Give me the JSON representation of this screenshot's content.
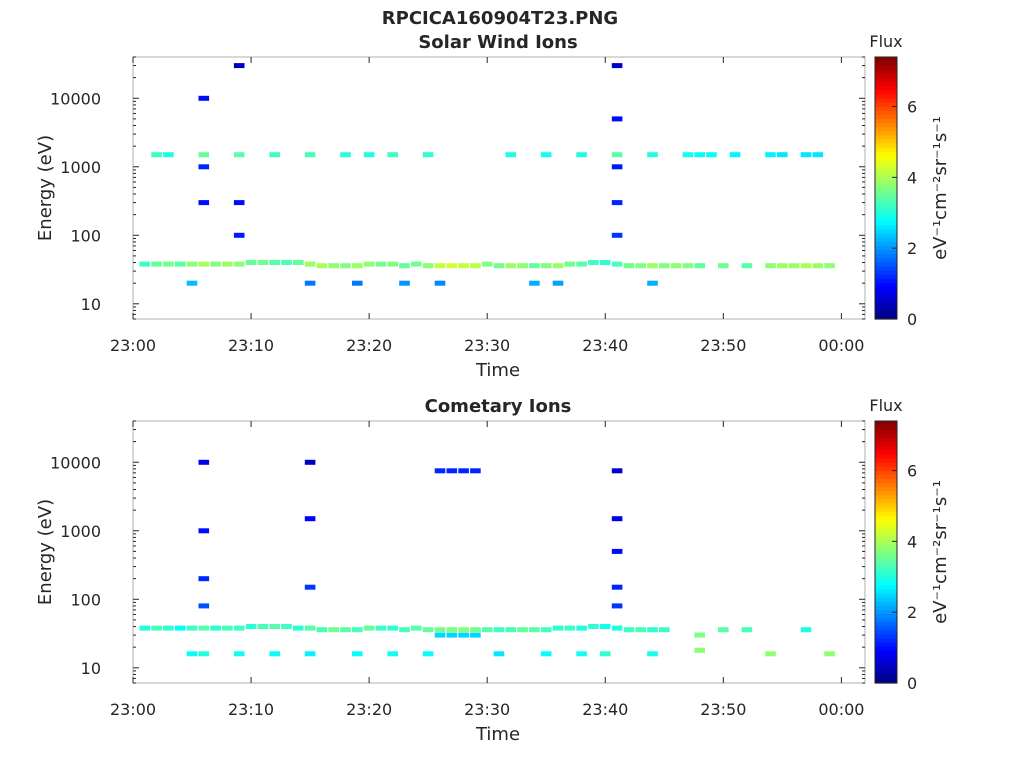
{
  "figure": {
    "title": "RPCICA160904T23.PNG"
  },
  "chart_data": [
    {
      "type": "heatmap",
      "title": "Solar Wind Ions",
      "xlabel": "Time",
      "ylabel": "Energy (eV)",
      "xscale": "linear",
      "yscale": "log",
      "xlim": [
        "23:00",
        "00:02"
      ],
      "xtick_labels": [
        "23:00",
        "23:10",
        "23:20",
        "23:30",
        "23:40",
        "23:50",
        "00:00"
      ],
      "ylim": [
        6,
        40000
      ],
      "ytick_labels": [
        "10",
        "100",
        "1000",
        "10000"
      ],
      "colorbar": {
        "label": "eV⁻¹cm⁻²sr⁻¹s⁻¹",
        "header": "Flux",
        "range": [
          0,
          7.4
        ],
        "tick_labels": [
          "0",
          "2",
          "4",
          "6"
        ],
        "colormap": "jet"
      },
      "cells": [
        [
          "23:01",
          38,
          3.2
        ],
        [
          "23:02",
          38,
          3.5
        ],
        [
          "23:03",
          38,
          3.6
        ],
        [
          "23:04",
          38,
          3.4
        ],
        [
          "23:05",
          38,
          3.8
        ],
        [
          "23:06",
          38,
          4.0
        ],
        [
          "23:07",
          38,
          3.7
        ],
        [
          "23:08",
          38,
          3.9
        ],
        [
          "23:09",
          38,
          3.8
        ],
        [
          "23:10",
          40,
          3.5
        ],
        [
          "23:11",
          40,
          3.6
        ],
        [
          "23:12",
          40,
          3.4
        ],
        [
          "23:13",
          40,
          3.3
        ],
        [
          "23:14",
          40,
          3.5
        ],
        [
          "23:15",
          38,
          3.9
        ],
        [
          "23:16",
          36,
          4.0
        ],
        [
          "23:17",
          36,
          3.8
        ],
        [
          "23:18",
          36,
          3.7
        ],
        [
          "23:19",
          36,
          3.9
        ],
        [
          "23:20",
          38,
          3.8
        ],
        [
          "23:21",
          38,
          3.6
        ],
        [
          "23:22",
          38,
          3.7
        ],
        [
          "23:23",
          36,
          3.5
        ],
        [
          "23:24",
          38,
          3.6
        ],
        [
          "23:25",
          36,
          3.8
        ],
        [
          "23:26",
          36,
          4.2
        ],
        [
          "23:27",
          36,
          4.3
        ],
        [
          "23:28",
          36,
          4.2
        ],
        [
          "23:29",
          36,
          4.1
        ],
        [
          "23:30",
          38,
          3.7
        ],
        [
          "23:31",
          36,
          3.6
        ],
        [
          "23:32",
          36,
          3.9
        ],
        [
          "23:33",
          36,
          3.8
        ],
        [
          "23:34",
          36,
          3.5
        ],
        [
          "23:35",
          36,
          3.7
        ],
        [
          "23:36",
          36,
          3.9
        ],
        [
          "23:37",
          38,
          3.6
        ],
        [
          "23:38",
          38,
          3.4
        ],
        [
          "23:39",
          40,
          3.2
        ],
        [
          "23:40",
          40,
          3.1
        ],
        [
          "23:41",
          38,
          3.3
        ],
        [
          "23:42",
          36,
          3.6
        ],
        [
          "23:43",
          36,
          3.7
        ],
        [
          "23:44",
          36,
          3.9
        ],
        [
          "23:45",
          36,
          3.7
        ],
        [
          "23:46",
          36,
          3.8
        ],
        [
          "23:47",
          36,
          3.7
        ],
        [
          "23:48",
          36,
          3.5
        ],
        [
          "23:50",
          36,
          3.6
        ],
        [
          "23:52",
          36,
          3.4
        ],
        [
          "23:54",
          36,
          3.8
        ],
        [
          "23:55",
          36,
          3.9
        ],
        [
          "23:56",
          36,
          3.9
        ],
        [
          "23:57",
          36,
          4.0
        ],
        [
          "23:58",
          36,
          3.9
        ],
        [
          "23:59",
          36,
          3.8
        ],
        [
          "23:02",
          1500,
          3.2
        ],
        [
          "23:03",
          1500,
          3.0
        ],
        [
          "23:06",
          1500,
          3.5
        ],
        [
          "23:09",
          1500,
          3.4
        ],
        [
          "23:12",
          1500,
          3.2
        ],
        [
          "23:15",
          1500,
          3.3
        ],
        [
          "23:18",
          1500,
          3.1
        ],
        [
          "23:20",
          1500,
          3.0
        ],
        [
          "23:22",
          1500,
          3.2
        ],
        [
          "23:25",
          1500,
          3.1
        ],
        [
          "23:32",
          1500,
          3.0
        ],
        [
          "23:35",
          1500,
          2.9
        ],
        [
          "23:38",
          1500,
          3.0
        ],
        [
          "23:41",
          1500,
          3.4
        ],
        [
          "23:44",
          1500,
          3.0
        ],
        [
          "23:47",
          1500,
          2.9
        ],
        [
          "23:48",
          1500,
          2.8
        ],
        [
          "23:49",
          1500,
          2.8
        ],
        [
          "23:51",
          1500,
          2.7
        ],
        [
          "23:54",
          1500,
          2.7
        ],
        [
          "23:55",
          1500,
          2.6
        ],
        [
          "23:57",
          1500,
          2.6
        ],
        [
          "23:58",
          1500,
          2.6
        ],
        [
          "23:41",
          30000,
          0.6
        ],
        [
          "23:41",
          5000,
          1.0
        ],
        [
          "23:41",
          1000,
          1.1
        ],
        [
          "23:41",
          300,
          1.2
        ],
        [
          "23:41",
          100,
          1.3
        ],
        [
          "23:06",
          10000,
          1.0
        ],
        [
          "23:06",
          1000,
          1.2
        ],
        [
          "23:06",
          300,
          1.0
        ],
        [
          "23:09",
          30000,
          0.5
        ],
        [
          "23:09",
          300,
          1.0
        ],
        [
          "23:09",
          100,
          1.1
        ],
        [
          "23:05",
          20,
          2.3
        ],
        [
          "23:15",
          20,
          1.8
        ],
        [
          "23:19",
          20,
          1.8
        ],
        [
          "23:23",
          20,
          2.0
        ],
        [
          "23:26",
          20,
          1.9
        ],
        [
          "23:34",
          20,
          2.2
        ],
        [
          "23:36",
          20,
          2.1
        ],
        [
          "23:44",
          20,
          2.2
        ]
      ]
    },
    {
      "type": "heatmap",
      "title": "Cometary Ions",
      "xlabel": "Time",
      "ylabel": "Energy (eV)",
      "xscale": "linear",
      "yscale": "log",
      "xlim": [
        "23:00",
        "00:02"
      ],
      "xtick_labels": [
        "23:00",
        "23:10",
        "23:20",
        "23:30",
        "23:40",
        "23:50",
        "00:00"
      ],
      "ylim": [
        6,
        40000
      ],
      "ytick_labels": [
        "10",
        "100",
        "1000",
        "10000"
      ],
      "colorbar": {
        "label": "eV⁻¹cm⁻²sr⁻¹s⁻¹",
        "header": "Flux",
        "range": [
          0,
          7.4
        ],
        "tick_labels": [
          "0",
          "2",
          "4",
          "6"
        ],
        "colormap": "jet"
      },
      "cells": [
        [
          "23:01",
          38,
          3.0
        ],
        [
          "23:02",
          38,
          3.3
        ],
        [
          "23:03",
          38,
          3.1
        ],
        [
          "23:04",
          38,
          2.8
        ],
        [
          "23:05",
          38,
          3.2
        ],
        [
          "23:06",
          38,
          3.4
        ],
        [
          "23:07",
          38,
          3.1
        ],
        [
          "23:08",
          38,
          3.3
        ],
        [
          "23:09",
          38,
          3.2
        ],
        [
          "23:10",
          40,
          3.1
        ],
        [
          "23:11",
          40,
          3.3
        ],
        [
          "23:12",
          40,
          3.4
        ],
        [
          "23:13",
          40,
          3.2
        ],
        [
          "23:14",
          38,
          3.1
        ],
        [
          "23:15",
          38,
          3.4
        ],
        [
          "23:16",
          36,
          3.3
        ],
        [
          "23:17",
          36,
          3.6
        ],
        [
          "23:18",
          36,
          3.4
        ],
        [
          "23:19",
          36,
          3.3
        ],
        [
          "23:20",
          38,
          3.5
        ],
        [
          "23:21",
          38,
          3.2
        ],
        [
          "23:22",
          38,
          3.1
        ],
        [
          "23:23",
          36,
          3.3
        ],
        [
          "23:24",
          38,
          3.4
        ],
        [
          "23:25",
          36,
          3.5
        ],
        [
          "23:26",
          36,
          3.6
        ],
        [
          "23:27",
          36,
          3.7
        ],
        [
          "23:28",
          36,
          3.7
        ],
        [
          "23:29",
          36,
          3.6
        ],
        [
          "23:30",
          36,
          3.4
        ],
        [
          "23:31",
          36,
          3.2
        ],
        [
          "23:32",
          36,
          3.3
        ],
        [
          "23:33",
          36,
          3.5
        ],
        [
          "23:34",
          36,
          3.4
        ],
        [
          "23:35",
          36,
          3.2
        ],
        [
          "23:36",
          38,
          3.1
        ],
        [
          "23:37",
          38,
          3.2
        ],
        [
          "23:38",
          38,
          3.0
        ],
        [
          "23:39",
          40,
          3.1
        ],
        [
          "23:40",
          40,
          2.9
        ],
        [
          "23:41",
          38,
          3.0
        ],
        [
          "23:42",
          36,
          3.2
        ],
        [
          "23:43",
          36,
          3.3
        ],
        [
          "23:44",
          36,
          3.1
        ],
        [
          "23:45",
          36,
          3.2
        ],
        [
          "23:48",
          30,
          3.7
        ],
        [
          "23:50",
          36,
          3.4
        ],
        [
          "23:52",
          36,
          3.3
        ],
        [
          "23:57",
          36,
          3.0
        ],
        [
          "23:26",
          30,
          2.5
        ],
        [
          "23:27",
          30,
          2.5
        ],
        [
          "23:28",
          30,
          2.5
        ],
        [
          "23:29",
          30,
          2.5
        ],
        [
          "23:26",
          7500,
          1.2
        ],
        [
          "23:27",
          7500,
          1.2
        ],
        [
          "23:28",
          7500,
          1.2
        ],
        [
          "23:29",
          7500,
          1.2
        ],
        [
          "23:41",
          7500,
          0.6
        ],
        [
          "23:41",
          1500,
          0.8
        ],
        [
          "23:41",
          500,
          1.0
        ],
        [
          "23:41",
          150,
          1.2
        ],
        [
          "23:41",
          80,
          1.3
        ],
        [
          "23:06",
          10000,
          0.8
        ],
        [
          "23:06",
          1000,
          1.0
        ],
        [
          "23:06",
          200,
          1.2
        ],
        [
          "23:06",
          80,
          1.5
        ],
        [
          "23:15",
          10000,
          0.5
        ],
        [
          "23:15",
          1500,
          0.9
        ],
        [
          "23:15",
          150,
          1.3
        ],
        [
          "23:05",
          16,
          2.8
        ],
        [
          "23:06",
          16,
          3.0
        ],
        [
          "23:09",
          16,
          2.9
        ],
        [
          "23:12",
          16,
          2.8
        ],
        [
          "23:15",
          16,
          2.7
        ],
        [
          "23:19",
          16,
          2.8
        ],
        [
          "23:22",
          16,
          2.9
        ],
        [
          "23:25",
          16,
          2.8
        ],
        [
          "23:31",
          16,
          2.6
        ],
        [
          "23:35",
          16,
          2.8
        ],
        [
          "23:38",
          16,
          2.9
        ],
        [
          "23:40",
          16,
          3.1
        ],
        [
          "23:44",
          16,
          2.9
        ],
        [
          "23:48",
          18,
          3.8
        ],
        [
          "23:54",
          16,
          3.8
        ],
        [
          "23:59",
          16,
          3.8
        ]
      ]
    }
  ]
}
